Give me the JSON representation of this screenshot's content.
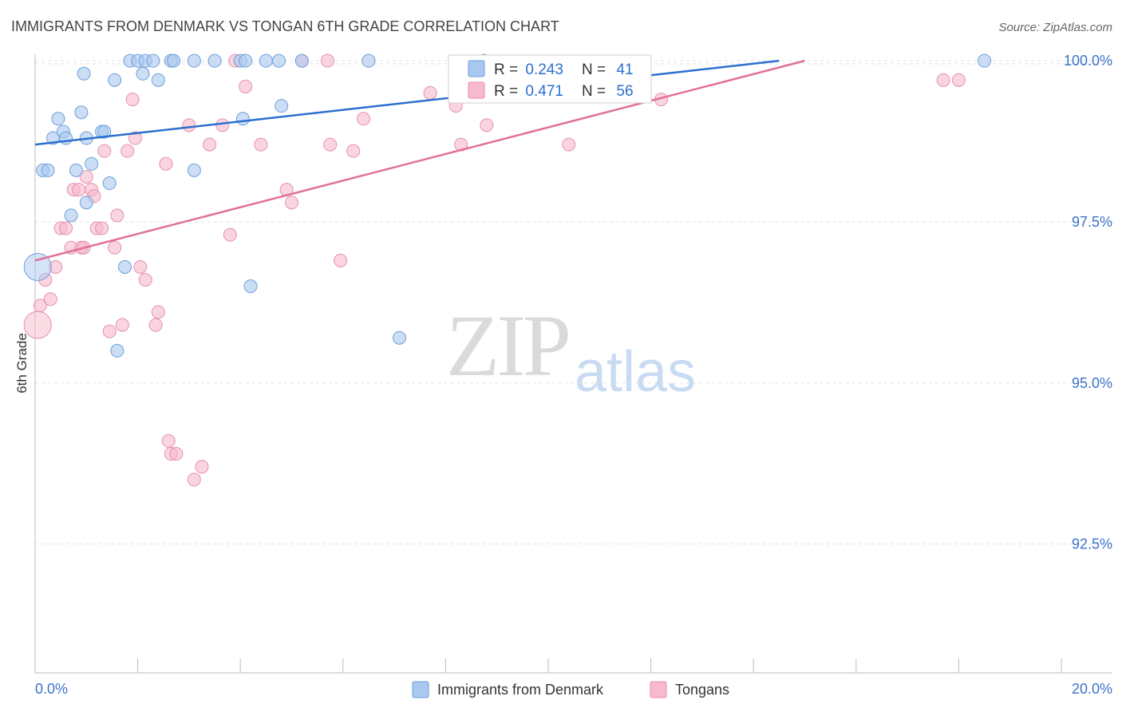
{
  "chart_data": {
    "type": "scatter",
    "title": "IMMIGRANTS FROM DENMARK VS TONGAN 6TH GRADE CORRELATION CHART",
    "source": "Source: ZipAtlas.com",
    "xlabel": "",
    "ylabel": "6th Grade",
    "xlim": [
      0,
      20
    ],
    "ylim": [
      90.5,
      100.2
    ],
    "x_tick_labels": [
      "0.0%",
      "20.0%"
    ],
    "y_ticks": [
      {
        "value": 100.0,
        "label": "100.0%"
      },
      {
        "value": 97.5,
        "label": "97.5%"
      },
      {
        "value": 95.0,
        "label": "95.0%"
      },
      {
        "value": 92.5,
        "label": "92.5%"
      }
    ],
    "watermark": {
      "zip": "ZIP",
      "atlas": "atlas"
    },
    "legend_box": [
      {
        "r_label": "R = ",
        "r_value": "0.243",
        "n_label": "N = ",
        "n_value": "41"
      },
      {
        "r_label": "R = ",
        "r_value": "0.471",
        "n_label": "N = ",
        "n_value": "56"
      }
    ],
    "colors": {
      "denmark_fill": "#a9c8f0",
      "denmark_stroke": "#6d9fd9",
      "denmark_line": "#2b6fd0",
      "tongan_fill": "#f7b9cc",
      "tongan_stroke": "#e590ac",
      "tongan_line": "#e0709a",
      "value_text": "#2b6fd0",
      "axis_text": "#3b73c9"
    },
    "series": [
      {
        "name": "Immigrants from Denmark",
        "trend": {
          "x": [
            0,
            14.5
          ],
          "y": [
            98.7,
            100.0
          ]
        },
        "points": [
          {
            "x": 0.15,
            "y": 98.3
          },
          {
            "x": 0.25,
            "y": 98.3
          },
          {
            "x": 0.35,
            "y": 98.8
          },
          {
            "x": 0.45,
            "y": 99.1
          },
          {
            "x": 0.55,
            "y": 98.9
          },
          {
            "x": 0.6,
            "y": 98.8
          },
          {
            "x": 0.7,
            "y": 97.6
          },
          {
            "x": 0.8,
            "y": 98.3
          },
          {
            "x": 0.9,
            "y": 99.2
          },
          {
            "x": 0.95,
            "y": 99.8
          },
          {
            "x": 1.0,
            "y": 97.8
          },
          {
            "x": 1.0,
            "y": 98.8
          },
          {
            "x": 1.1,
            "y": 98.4
          },
          {
            "x": 1.3,
            "y": 98.9
          },
          {
            "x": 1.35,
            "y": 98.9
          },
          {
            "x": 1.45,
            "y": 98.1
          },
          {
            "x": 1.55,
            "y": 99.7
          },
          {
            "x": 1.6,
            "y": 95.5
          },
          {
            "x": 1.75,
            "y": 96.8
          },
          {
            "x": 1.85,
            "y": 100.0
          },
          {
            "x": 2.0,
            "y": 100.0
          },
          {
            "x": 2.1,
            "y": 99.8
          },
          {
            "x": 2.15,
            "y": 100.0
          },
          {
            "x": 2.3,
            "y": 100.0
          },
          {
            "x": 2.4,
            "y": 99.7
          },
          {
            "x": 2.65,
            "y": 100.0
          },
          {
            "x": 2.7,
            "y": 100.0
          },
          {
            "x": 3.1,
            "y": 100.0
          },
          {
            "x": 3.1,
            "y": 98.3
          },
          {
            "x": 3.5,
            "y": 100.0
          },
          {
            "x": 4.0,
            "y": 100.0
          },
          {
            "x": 4.05,
            "y": 99.1
          },
          {
            "x": 4.2,
            "y": 96.5
          },
          {
            "x": 4.1,
            "y": 100.0
          },
          {
            "x": 4.5,
            "y": 100.0
          },
          {
            "x": 4.75,
            "y": 100.0
          },
          {
            "x": 4.8,
            "y": 99.3
          },
          {
            "x": 5.2,
            "y": 100.0
          },
          {
            "x": 6.5,
            "y": 100.0
          },
          {
            "x": 7.1,
            "y": 95.7
          },
          {
            "x": 8.75,
            "y": 100.0
          },
          {
            "x": 18.5,
            "y": 100.0
          },
          {
            "x": 0.05,
            "y": 96.8,
            "big": true
          }
        ]
      },
      {
        "name": "Tongans",
        "trend": {
          "x": [
            0,
            15.0
          ],
          "y": [
            96.9,
            100.0
          ]
        },
        "points": [
          {
            "x": 0.1,
            "y": 96.2
          },
          {
            "x": 0.2,
            "y": 96.6
          },
          {
            "x": 0.3,
            "y": 96.3
          },
          {
            "x": 0.4,
            "y": 96.8
          },
          {
            "x": 0.5,
            "y": 97.4
          },
          {
            "x": 0.6,
            "y": 97.4
          },
          {
            "x": 0.7,
            "y": 97.1
          },
          {
            "x": 0.75,
            "y": 98.0
          },
          {
            "x": 0.85,
            "y": 98.0
          },
          {
            "x": 0.9,
            "y": 97.1
          },
          {
            "x": 0.95,
            "y": 97.1
          },
          {
            "x": 1.0,
            "y": 98.2
          },
          {
            "x": 1.1,
            "y": 98.0
          },
          {
            "x": 1.15,
            "y": 97.9
          },
          {
            "x": 1.2,
            "y": 97.4
          },
          {
            "x": 1.3,
            "y": 97.4
          },
          {
            "x": 1.35,
            "y": 98.6
          },
          {
            "x": 1.45,
            "y": 95.8
          },
          {
            "x": 1.55,
            "y": 97.1
          },
          {
            "x": 1.6,
            "y": 97.6
          },
          {
            "x": 1.7,
            "y": 95.9
          },
          {
            "x": 1.8,
            "y": 98.6
          },
          {
            "x": 1.9,
            "y": 99.4
          },
          {
            "x": 1.95,
            "y": 98.8
          },
          {
            "x": 2.05,
            "y": 96.8
          },
          {
            "x": 2.15,
            "y": 96.6
          },
          {
            "x": 2.35,
            "y": 95.9
          },
          {
            "x": 2.4,
            "y": 96.1
          },
          {
            "x": 2.55,
            "y": 98.4
          },
          {
            "x": 2.6,
            "y": 94.1
          },
          {
            "x": 2.65,
            "y": 93.9
          },
          {
            "x": 2.75,
            "y": 93.9
          },
          {
            "x": 3.0,
            "y": 99.0
          },
          {
            "x": 3.1,
            "y": 93.5
          },
          {
            "x": 3.25,
            "y": 93.7
          },
          {
            "x": 3.4,
            "y": 98.7
          },
          {
            "x": 3.65,
            "y": 99.0
          },
          {
            "x": 3.8,
            "y": 97.3
          },
          {
            "x": 3.9,
            "y": 100.0
          },
          {
            "x": 4.1,
            "y": 99.6
          },
          {
            "x": 4.4,
            "y": 98.7
          },
          {
            "x": 4.9,
            "y": 98.0
          },
          {
            "x": 5.0,
            "y": 97.8
          },
          {
            "x": 5.2,
            "y": 100.0
          },
          {
            "x": 5.7,
            "y": 100.0
          },
          {
            "x": 5.75,
            "y": 98.7
          },
          {
            "x": 5.95,
            "y": 96.9
          },
          {
            "x": 6.2,
            "y": 98.6
          },
          {
            "x": 6.4,
            "y": 99.1
          },
          {
            "x": 7.7,
            "y": 99.5
          },
          {
            "x": 8.2,
            "y": 99.3
          },
          {
            "x": 8.3,
            "y": 98.7
          },
          {
            "x": 8.8,
            "y": 99.0
          },
          {
            "x": 10.4,
            "y": 98.7
          },
          {
            "x": 12.2,
            "y": 99.4
          },
          {
            "x": 17.7,
            "y": 99.7
          },
          {
            "x": 18.0,
            "y": 99.7
          },
          {
            "x": 0.05,
            "y": 95.9,
            "big": true
          }
        ]
      }
    ]
  }
}
